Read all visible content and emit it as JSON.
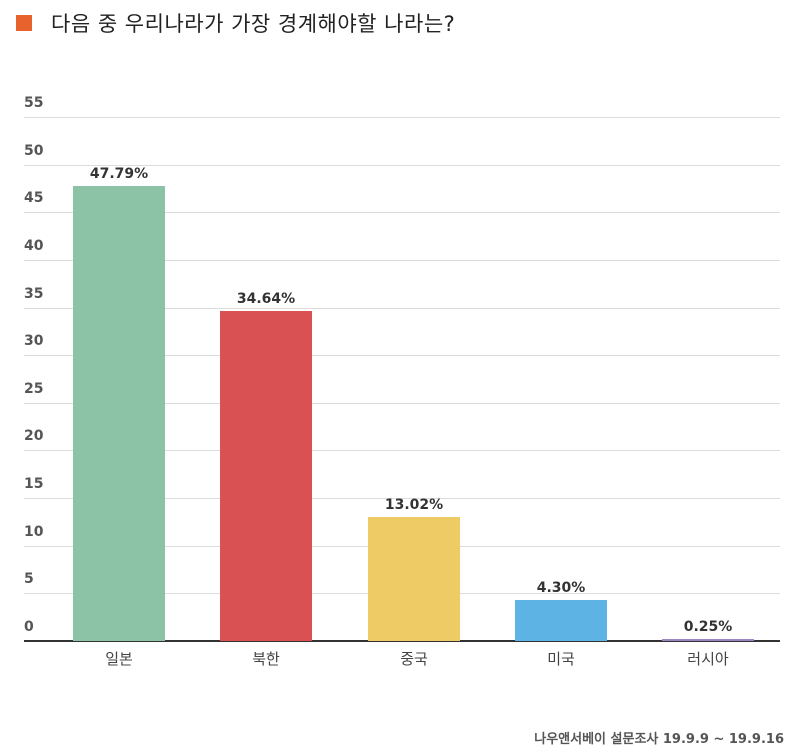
{
  "header": {
    "title": "다음 중 우리나라가 가장 경계해야할 나라는?",
    "marker_color": "#e8622d"
  },
  "chart_data": {
    "type": "bar",
    "title": "다음 중 우리나라가 가장 경계해야할 나라는?",
    "xlabel": "",
    "ylabel": "",
    "ylim": [
      0,
      55
    ],
    "yticks": [
      0,
      5,
      10,
      15,
      20,
      25,
      30,
      35,
      40,
      45,
      50,
      55
    ],
    "grid": true,
    "legend": "none",
    "categories": [
      "일본",
      "북한",
      "중국",
      "미국",
      "러시아"
    ],
    "values": [
      47.79,
      34.64,
      13.02,
      4.3,
      0.25
    ],
    "value_labels": [
      "47.79%",
      "34.64%",
      "13.02%",
      "4.30%",
      "0.25%"
    ],
    "colors": [
      "#8cc3a6",
      "#d95152",
      "#efcb66",
      "#5db4e4",
      "#9c87c2"
    ]
  },
  "footer": {
    "source": "나우앤서베이 설문조사 19.9.9 ~ 19.9.16"
  }
}
